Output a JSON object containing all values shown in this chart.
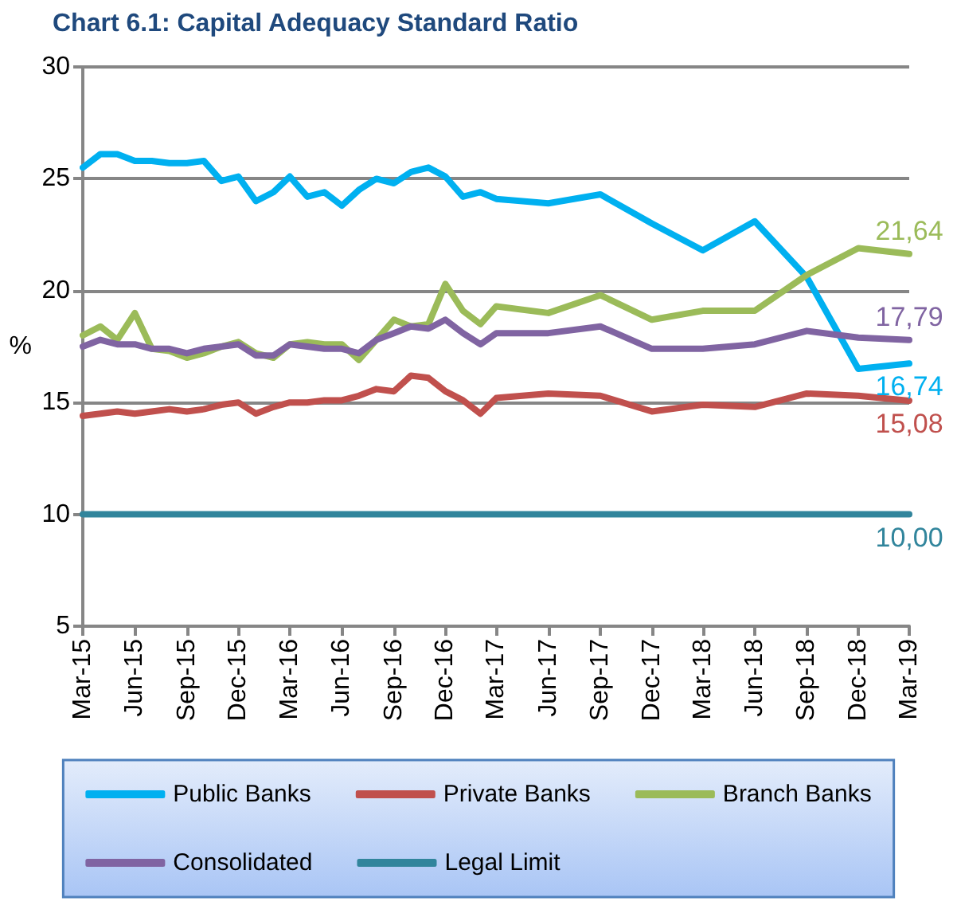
{
  "chart_data": {
    "type": "line",
    "title": "Chart 6.1: Capital Adequacy Standard Ratio",
    "ylabel": "%",
    "x": [
      "2015-03",
      "2015-04",
      "2015-05",
      "2015-06",
      "2015-07",
      "2015-08",
      "2015-09",
      "2015-10",
      "2015-11",
      "2015-12",
      "2016-01",
      "2016-02",
      "2016-03",
      "2016-04",
      "2016-05",
      "2016-06",
      "2016-07",
      "2016-08",
      "2016-09",
      "2016-10",
      "2016-11",
      "2016-12",
      "2017-01",
      "2017-02",
      "2017-03",
      "2017-06",
      "2017-09",
      "2017-12",
      "2018-03",
      "2018-06",
      "2018-09",
      "2018-12",
      "2019-03"
    ],
    "series": [
      {
        "name": "Public Banks",
        "color": "#00b0f0",
        "values": [
          25.5,
          26.1,
          26.1,
          25.8,
          25.8,
          25.7,
          25.7,
          25.8,
          24.9,
          25.1,
          24.0,
          24.4,
          25.1,
          24.2,
          24.4,
          23.8,
          24.5,
          25.0,
          24.8,
          25.3,
          25.5,
          25.1,
          24.2,
          24.4,
          24.1,
          23.9,
          24.3,
          23.0,
          21.8,
          23.1,
          20.6,
          16.5,
          16.74
        ],
        "value_labels": [
          null,
          null,
          null,
          null,
          null,
          null,
          null,
          null,
          null,
          null,
          null,
          null,
          null,
          null,
          null,
          null,
          null,
          null,
          null,
          null,
          null,
          null,
          null,
          null,
          null,
          null,
          null,
          null,
          null,
          null,
          null,
          null,
          "16,74"
        ]
      },
      {
        "name": "Private Banks",
        "color": "#c0504d",
        "values": [
          14.4,
          14.5,
          14.6,
          14.5,
          14.6,
          14.7,
          14.6,
          14.7,
          14.9,
          15.0,
          14.5,
          14.8,
          15.0,
          15.0,
          15.1,
          15.1,
          15.3,
          15.6,
          15.5,
          16.2,
          16.1,
          15.5,
          15.1,
          14.5,
          15.2,
          15.4,
          15.3,
          14.6,
          14.9,
          14.8,
          15.4,
          15.3,
          15.08
        ],
        "value_labels": [
          null,
          null,
          null,
          null,
          null,
          null,
          null,
          null,
          null,
          null,
          null,
          null,
          null,
          null,
          null,
          null,
          null,
          null,
          null,
          null,
          null,
          null,
          null,
          null,
          null,
          null,
          null,
          null,
          null,
          null,
          null,
          null,
          "15,08"
        ]
      },
      {
        "name": "Branch Banks",
        "color": "#9bbb59",
        "values": [
          18.0,
          18.4,
          17.8,
          19.0,
          17.4,
          17.3,
          17.0,
          17.2,
          17.5,
          17.7,
          17.2,
          17.0,
          17.6,
          17.7,
          17.6,
          17.6,
          16.9,
          17.8,
          18.7,
          18.4,
          18.5,
          20.3,
          19.1,
          18.5,
          19.3,
          19.0,
          19.8,
          18.7,
          19.1,
          19.1,
          20.7,
          21.9,
          21.64
        ],
        "value_labels": [
          null,
          null,
          null,
          null,
          null,
          null,
          null,
          null,
          null,
          null,
          null,
          null,
          null,
          null,
          null,
          null,
          null,
          null,
          null,
          null,
          null,
          null,
          null,
          null,
          null,
          null,
          null,
          null,
          null,
          null,
          null,
          null,
          "21,64"
        ]
      },
      {
        "name": "Consolidated",
        "color": "#8064a2",
        "values": [
          17.5,
          17.8,
          17.6,
          17.6,
          17.4,
          17.4,
          17.2,
          17.4,
          17.5,
          17.6,
          17.1,
          17.1,
          17.6,
          17.5,
          17.4,
          17.4,
          17.2,
          17.8,
          18.1,
          18.4,
          18.3,
          18.7,
          18.1,
          17.6,
          18.1,
          18.1,
          18.4,
          17.4,
          17.4,
          17.6,
          18.2,
          17.9,
          17.79
        ],
        "value_labels": [
          null,
          null,
          null,
          null,
          null,
          null,
          null,
          null,
          null,
          null,
          null,
          null,
          null,
          null,
          null,
          null,
          null,
          null,
          null,
          null,
          null,
          null,
          null,
          null,
          null,
          null,
          null,
          null,
          null,
          null,
          null,
          null,
          "17,79"
        ]
      },
      {
        "name": "Legal Limit",
        "color": "#31859c",
        "x": [
          "2015-03",
          "2019-03"
        ],
        "values": [
          10.0,
          10.0
        ],
        "value_labels": [
          null,
          "10,00"
        ]
      }
    ],
    "xlim": [
      "2015-03",
      "2019-03"
    ],
    "xticks": [
      {
        "value": "2015-03",
        "label": "Mar-15"
      },
      {
        "value": "2015-06",
        "label": "Jun-15"
      },
      {
        "value": "2015-09",
        "label": "Sep-15"
      },
      {
        "value": "2015-12",
        "label": "Dec-15"
      },
      {
        "value": "2016-03",
        "label": "Mar-16"
      },
      {
        "value": "2016-06",
        "label": "Jun-16"
      },
      {
        "value": "2016-09",
        "label": "Sep-16"
      },
      {
        "value": "2016-12",
        "label": "Dec-16"
      },
      {
        "value": "2017-03",
        "label": "Mar-17"
      },
      {
        "value": "2017-06",
        "label": "Jun-17"
      },
      {
        "value": "2017-09",
        "label": "Sep-17"
      },
      {
        "value": "2017-12",
        "label": "Dec-17"
      },
      {
        "value": "2018-03",
        "label": "Mar-18"
      },
      {
        "value": "2018-06",
        "label": "Jun-18"
      },
      {
        "value": "2018-09",
        "label": "Sep-18"
      },
      {
        "value": "2018-12",
        "label": "Dec-18"
      },
      {
        "value": "2019-03",
        "label": "Mar-19"
      }
    ],
    "ylim": [
      5,
      30
    ],
    "yticks": [
      5,
      10,
      15,
      20,
      25,
      30
    ],
    "grid": "y",
    "legend": "bottom",
    "marker": "none",
    "line_style": "solid"
  }
}
